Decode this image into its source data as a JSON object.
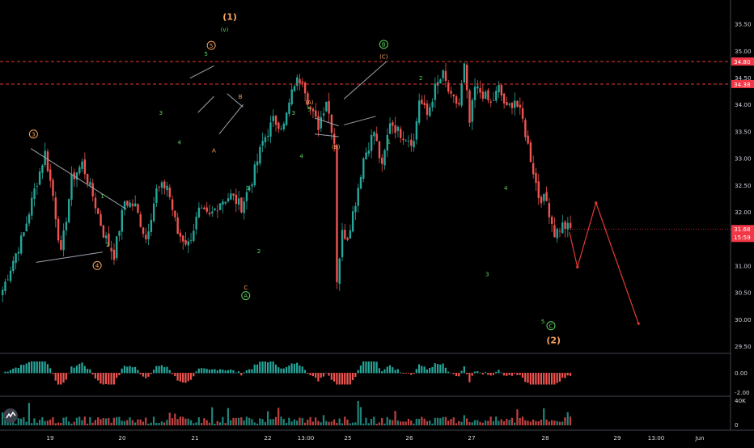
{
  "colors": {
    "background": "#000000",
    "up": "#26a69a",
    "down": "#ef5350",
    "orange_label": "#f7a35c",
    "green_label": "#5fd35f",
    "projection": "#e53935",
    "resistance": "#e53935",
    "axis_text": "#d1d4dc",
    "trend_line": "#9ea3ad",
    "price_tag": "#f23645"
  },
  "chart_data": {
    "type": "candlestick",
    "title": "",
    "xlabel": "",
    "ylabel": "",
    "ylim": [
      29.45,
      35.75
    ],
    "grid": false,
    "x_ticks": [
      "19",
      "20",
      "21",
      "22",
      "13:00",
      "25",
      "26",
      "27",
      "28",
      "29",
      "13:00",
      "Jun"
    ],
    "y_ticks": [
      "35.50",
      "35.00",
      "34.50",
      "34.00",
      "33.50",
      "33.00",
      "32.50",
      "32.00",
      "31.50",
      "31.00",
      "30.50",
      "30.00",
      "29.50"
    ],
    "price_path": [
      [
        0,
        30.55
      ],
      [
        4,
        31.1
      ],
      [
        8,
        31.6
      ],
      [
        12,
        32.4
      ],
      [
        16,
        33.1
      ],
      [
        19,
        32.3
      ],
      [
        22,
        31.2
      ],
      [
        26,
        32.6
      ],
      [
        30,
        32.9
      ],
      [
        34,
        32.3
      ],
      [
        38,
        31.6
      ],
      [
        42,
        31.2
      ],
      [
        46,
        32.2
      ],
      [
        50,
        32.1
      ],
      [
        54,
        31.5
      ],
      [
        58,
        32.4
      ],
      [
        62,
        32.5
      ],
      [
        66,
        31.6
      ],
      [
        70,
        31.4
      ],
      [
        74,
        32.0
      ],
      [
        78,
        31.9
      ],
      [
        82,
        32.2
      ],
      [
        86,
        32.3
      ],
      [
        90,
        32.1
      ],
      [
        94,
        32.6
      ],
      [
        98,
        33.3
      ],
      [
        102,
        33.7
      ],
      [
        106,
        33.6
      ],
      [
        110,
        34.4
      ],
      [
        113,
        34.5
      ],
      [
        116,
        33.9
      ],
      [
        119,
        33.6
      ],
      [
        122,
        34.1
      ],
      [
        125,
        33.3
      ],
      [
        126,
        30.75
      ],
      [
        128,
        31.6
      ],
      [
        130,
        31.55
      ],
      [
        133,
        32.2
      ],
      [
        136,
        33.0
      ],
      [
        140,
        33.5
      ],
      [
        143,
        32.8
      ],
      [
        146,
        33.7
      ],
      [
        149,
        33.5
      ],
      [
        152,
        33.4
      ],
      [
        155,
        33.3
      ],
      [
        157,
        34.1
      ],
      [
        160,
        33.8
      ],
      [
        163,
        34.3
      ],
      [
        166,
        34.55
      ],
      [
        169,
        34.1
      ],
      [
        172,
        34.0
      ],
      [
        174,
        34.7
      ],
      [
        176,
        33.65
      ],
      [
        178,
        34.3
      ],
      [
        181,
        34.2
      ],
      [
        184,
        34.0
      ],
      [
        187,
        34.3
      ],
      [
        190,
        33.9
      ],
      [
        193,
        34.1
      ],
      [
        196,
        33.7
      ],
      [
        199,
        33.0
      ],
      [
        202,
        32.3
      ],
      [
        205,
        32.2
      ],
      [
        208,
        31.6
      ],
      [
        211,
        31.75
      ],
      [
        214,
        31.68
      ]
    ],
    "current_price": "31.68",
    "countdown": "15:59",
    "resistance_levels": [
      {
        "price": 34.8,
        "label": "34.80"
      },
      {
        "price": 34.38,
        "label": "34.38"
      }
    ],
    "projection_path": [
      {
        "x": 214,
        "y": 31.62
      },
      {
        "x": 217,
        "y": 30.97
      },
      {
        "x": 224,
        "y": 32.17
      },
      {
        "x": 240,
        "y": 29.92
      }
    ],
    "wave_labels": [
      {
        "text": "3",
        "style": "circle-orange",
        "x": 12,
        "y": 33.45
      },
      {
        "text": "4",
        "style": "circle-orange",
        "x": 36,
        "y": 31.0
      },
      {
        "text": "1",
        "style": "green",
        "x": 38,
        "y": 32.3
      },
      {
        "text": "2",
        "style": "green",
        "x": 40,
        "y": 31.4
      },
      {
        "text": "3",
        "style": "green",
        "x": 60,
        "y": 33.85
      },
      {
        "text": "4",
        "style": "green",
        "x": 67,
        "y": 33.3
      },
      {
        "text": "5",
        "style": "green",
        "x": 77,
        "y": 34.95
      },
      {
        "text": "5",
        "style": "circle-orange",
        "x": 79,
        "y": 35.1
      },
      {
        "text": "(v)",
        "style": "green",
        "x": 84,
        "y": 35.4
      },
      {
        "text": "(1)",
        "style": "orange-large",
        "x": 86,
        "y": 35.62
      },
      {
        "text": "A",
        "style": "orange",
        "x": 80,
        "y": 33.15
      },
      {
        "text": "B",
        "style": "orange",
        "x": 90,
        "y": 34.15
      },
      {
        "text": "C",
        "style": "orange",
        "x": 92,
        "y": 30.6
      },
      {
        "text": "A",
        "style": "circle-green",
        "x": 92,
        "y": 30.44
      },
      {
        "text": "1",
        "style": "green",
        "x": 93,
        "y": 32.45
      },
      {
        "text": "2",
        "style": "green",
        "x": 97,
        "y": 31.28
      },
      {
        "text": "3",
        "style": "green",
        "x": 110,
        "y": 33.85
      },
      {
        "text": "4",
        "style": "green",
        "x": 113,
        "y": 33.05
      },
      {
        "text": "5",
        "style": "green",
        "x": 116,
        "y": 33.92
      },
      {
        "text": "(A)",
        "style": "orange",
        "x": 116,
        "y": 34.05
      },
      {
        "text": "(B)",
        "style": "orange",
        "x": 126,
        "y": 33.22
      },
      {
        "text": "B",
        "style": "circle-green",
        "x": 144,
        "y": 35.12
      },
      {
        "text": "(C)",
        "style": "orange",
        "x": 144,
        "y": 34.9
      },
      {
        "text": "1",
        "style": "green",
        "x": 146,
        "y": 33.32
      },
      {
        "text": "2",
        "style": "green",
        "x": 158,
        "y": 34.5
      },
      {
        "text": "3",
        "style": "green",
        "x": 183,
        "y": 30.85
      },
      {
        "text": "4",
        "style": "green",
        "x": 190,
        "y": 32.45
      },
      {
        "text": "5",
        "style": "green",
        "x": 204,
        "y": 29.97
      },
      {
        "text": "C",
        "style": "circle-green",
        "x": 207,
        "y": 29.88
      },
      {
        "text": "(2)",
        "style": "orange-large",
        "x": 208,
        "y": 29.6
      }
    ],
    "trend_lines": [
      {
        "points": [
          [
            11,
            33.18
          ],
          [
            47,
            32.05
          ]
        ]
      },
      {
        "points": [
          [
            13,
            31.06
          ],
          [
            38,
            31.25
          ]
        ]
      },
      {
        "points": [
          [
            71,
            34.49
          ],
          [
            80,
            34.72
          ]
        ]
      },
      {
        "points": [
          [
            74,
            33.85
          ],
          [
            80,
            34.15
          ]
        ]
      },
      {
        "points": [
          [
            82,
            33.45
          ],
          [
            91,
            34.0
          ]
        ]
      },
      {
        "points": [
          [
            85,
            34.2
          ],
          [
            91,
            33.95
          ]
        ]
      },
      {
        "points": [
          [
            118,
            33.75
          ],
          [
            127,
            33.6
          ]
        ]
      },
      {
        "points": [
          [
            118,
            33.45
          ],
          [
            127,
            33.4
          ]
        ]
      },
      {
        "points": [
          [
            129,
            34.1
          ],
          [
            145,
            34.8
          ]
        ]
      },
      {
        "points": [
          [
            129,
            33.62
          ],
          [
            141,
            33.78
          ]
        ]
      }
    ],
    "oscillator": {
      "y_ticks": [
        "0.00",
        "-2.00"
      ]
    },
    "volume": {
      "y_ticks": [
        "40K",
        "0"
      ]
    }
  }
}
